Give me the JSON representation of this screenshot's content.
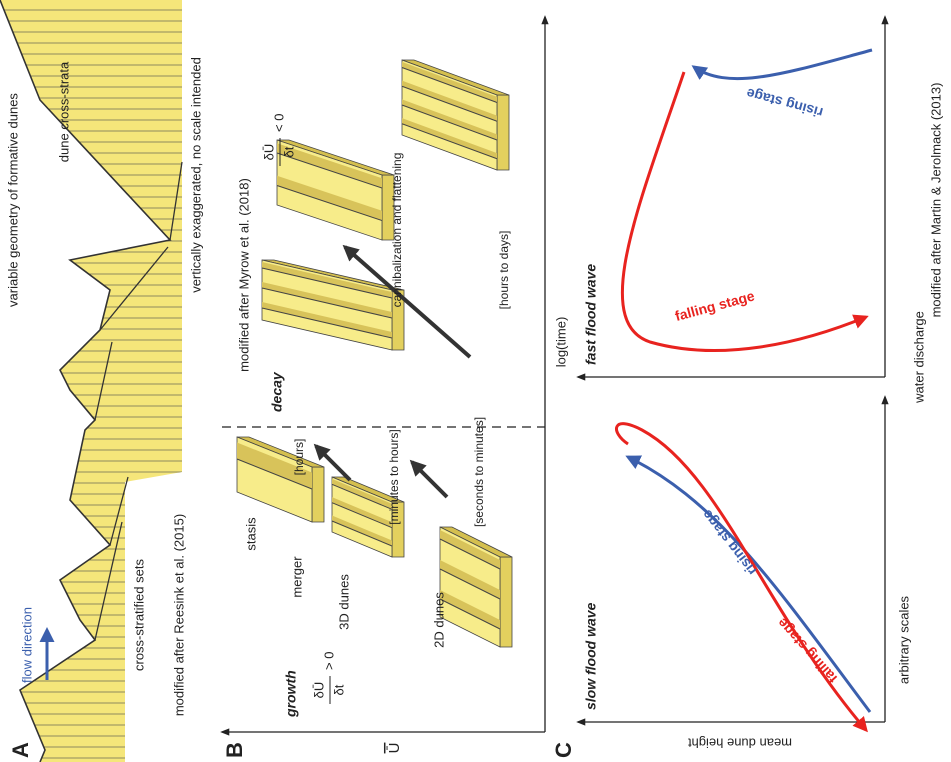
{
  "panel_a": {
    "label": "A",
    "flow_direction": "flow direction",
    "title": "variable geometry of formative dunes",
    "strata_label": "dune cross-strata",
    "sets_label": "cross-stratified sets",
    "source": "modified after Reesink et al. (2015)",
    "note": "vertically exaggerated, no scale intended"
  },
  "panel_b": {
    "label": "B",
    "y_axis": "Ū",
    "x_axis": "log(time)",
    "growth": {
      "title": "growth",
      "numerator": "δŪ",
      "denominator": "δt",
      "relation": "> 0",
      "stages": [
        "2D dunes",
        "3D dunes",
        "merger",
        "stasis"
      ],
      "timescales": [
        "[seconds to minutes]",
        "[minutes to hours]",
        "[hours]"
      ]
    },
    "decay": {
      "title": "decay",
      "source": "modified after Myrow et al. (2018)",
      "numerator": "δŪ",
      "denominator": "δt",
      "relation": "< 0",
      "process": "cannibalization and flattening",
      "timescale": "[hours to days]"
    }
  },
  "panel_c": {
    "label": "C",
    "y_axis": "mean dune height",
    "x_axis": "water discharge",
    "note": "arbitrary scales",
    "source": "modified after Martin & Jerolmack (2013)",
    "plots": [
      {
        "title": "slow flood wave",
        "falling": "falling stage",
        "rising": "rising stage"
      },
      {
        "title": "fast flood wave",
        "falling": "falling stage",
        "rising": "rising stage"
      }
    ]
  }
}
